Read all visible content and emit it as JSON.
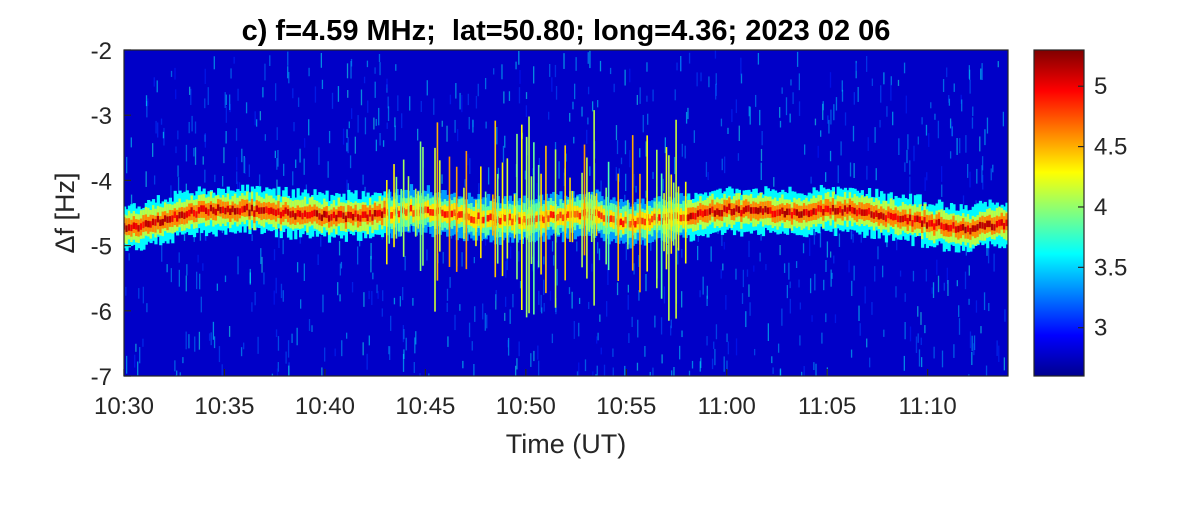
{
  "chart_data": {
    "type": "heatmap",
    "title": "c) f=4.59 MHz;  lat=50.80; long=4.36; 2023 02 06",
    "xlabel": "Time (UT)",
    "ylabel": "Δf [Hz]",
    "xlim": [
      "10:30",
      "11:14"
    ],
    "ylim": [
      -7,
      -2
    ],
    "x_ticks": [
      "10:30",
      "10:35",
      "10:40",
      "10:45",
      "10:50",
      "10:55",
      "11:00",
      "11:05",
      "11:10"
    ],
    "y_ticks": [
      -2,
      -3,
      -4,
      -5,
      -6,
      -7
    ],
    "colorbar": {
      "colormap": "jet",
      "range": [
        2.6,
        5.3
      ],
      "ticks": [
        3,
        3.5,
        4,
        4.5,
        5
      ]
    },
    "grid": false,
    "ridge": {
      "description": "intensity maximum (Doppler shift) vs time",
      "time": [
        "10:30",
        "10:32",
        "10:34",
        "10:36",
        "10:38",
        "10:40",
        "10:42",
        "10:43",
        "10:45",
        "10:48",
        "10:50",
        "10:53",
        "10:55",
        "10:58",
        "11:00",
        "11:03",
        "11:06",
        "11:09",
        "11:12",
        "11:14"
      ],
      "delta_f": [
        -4.75,
        -4.6,
        -4.45,
        -4.45,
        -4.5,
        -4.55,
        -4.55,
        -4.5,
        -4.45,
        -4.6,
        -4.6,
        -4.5,
        -4.65,
        -4.55,
        -4.45,
        -4.5,
        -4.45,
        -4.6,
        -4.75,
        -4.65
      ],
      "peak_value": 5.2
    },
    "disturbance_window": [
      "10:43",
      "10:58"
    ]
  }
}
